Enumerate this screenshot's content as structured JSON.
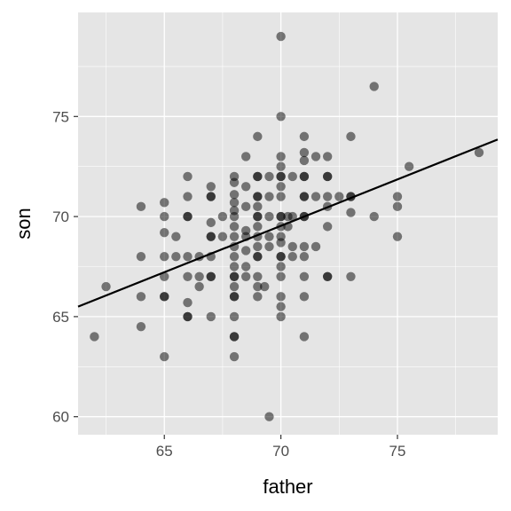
{
  "chart_data": {
    "type": "scatter",
    "title": "",
    "xlabel": "father",
    "ylabel": "son",
    "xlim": [
      61.3,
      79.3
    ],
    "ylim": [
      59.1,
      80.2
    ],
    "x_ticks": [
      65,
      70,
      75
    ],
    "y_ticks": [
      60,
      65,
      70,
      75
    ],
    "x_minor_ticks": [
      62.5,
      67.5,
      72.5,
      77.5
    ],
    "y_minor_ticks": [
      62.5,
      67.5,
      72.5,
      77.5
    ],
    "grid": true,
    "panel_background": "#e5e5e5",
    "grid_color": "#ffffff",
    "point_color": "#000000",
    "point_opacity": 0.5,
    "line_color": "#000000",
    "points": [
      [
        62,
        64
      ],
      [
        62.5,
        66.5
      ],
      [
        64,
        70.5
      ],
      [
        64,
        68
      ],
      [
        64,
        66
      ],
      [
        64,
        64.5
      ],
      [
        65,
        70.7
      ],
      [
        65,
        70
      ],
      [
        65,
        69.2
      ],
      [
        65,
        68
      ],
      [
        65,
        67
      ],
      [
        65,
        66
      ],
      [
        65,
        66
      ],
      [
        65,
        63
      ],
      [
        65.5,
        69
      ],
      [
        65.5,
        68
      ],
      [
        66,
        72
      ],
      [
        66,
        71
      ],
      [
        66,
        70
      ],
      [
        66,
        70
      ],
      [
        66,
        68
      ],
      [
        66,
        67
      ],
      [
        66,
        65.7
      ],
      [
        66,
        65
      ],
      [
        66,
        65
      ],
      [
        66.5,
        68
      ],
      [
        66.5,
        67
      ],
      [
        66.5,
        66.5
      ],
      [
        67,
        71.5
      ],
      [
        67,
        71
      ],
      [
        67,
        71
      ],
      [
        67,
        69.7
      ],
      [
        67,
        69
      ],
      [
        67,
        69
      ],
      [
        67,
        68
      ],
      [
        67,
        67
      ],
      [
        67,
        67
      ],
      [
        67,
        65
      ],
      [
        67.5,
        70
      ],
      [
        67.5,
        69
      ],
      [
        68,
        72
      ],
      [
        68,
        71.7
      ],
      [
        68,
        71.1
      ],
      [
        68,
        70.7
      ],
      [
        68,
        70.3
      ],
      [
        68,
        70
      ],
      [
        68,
        69.5
      ],
      [
        68,
        69
      ],
      [
        68,
        68.5
      ],
      [
        68,
        68
      ],
      [
        68,
        67.5
      ],
      [
        68,
        67
      ],
      [
        68,
        67
      ],
      [
        68,
        66.5
      ],
      [
        68,
        66
      ],
      [
        68,
        66
      ],
      [
        68,
        65
      ],
      [
        68,
        64
      ],
      [
        68,
        64
      ],
      [
        68,
        63
      ],
      [
        68.5,
        73
      ],
      [
        68.5,
        71.5
      ],
      [
        68.5,
        70.5
      ],
      [
        68.5,
        69.3
      ],
      [
        68.5,
        69
      ],
      [
        68.5,
        68.3
      ],
      [
        68.5,
        67.5
      ],
      [
        68.5,
        67
      ],
      [
        69,
        74
      ],
      [
        69,
        72
      ],
      [
        69,
        72
      ],
      [
        69,
        71
      ],
      [
        69,
        71
      ],
      [
        69,
        70.5
      ],
      [
        69,
        70
      ],
      [
        69,
        70
      ],
      [
        69,
        69.5
      ],
      [
        69,
        69
      ],
      [
        69,
        68.5
      ],
      [
        69,
        68
      ],
      [
        69,
        68
      ],
      [
        69,
        67
      ],
      [
        69,
        66.5
      ],
      [
        69,
        66
      ],
      [
        69.3,
        66.5
      ],
      [
        69.5,
        72
      ],
      [
        69.5,
        71
      ],
      [
        69.5,
        70
      ],
      [
        69.5,
        69
      ],
      [
        69.5,
        68.5
      ],
      [
        69.5,
        60
      ],
      [
        70,
        79
      ],
      [
        70,
        75
      ],
      [
        70,
        73
      ],
      [
        70,
        72.5
      ],
      [
        70,
        72
      ],
      [
        70,
        72
      ],
      [
        70,
        71.5
      ],
      [
        70,
        71
      ],
      [
        70,
        70
      ],
      [
        70,
        70
      ],
      [
        70,
        69.5
      ],
      [
        70,
        69
      ],
      [
        70,
        68.7
      ],
      [
        70,
        68
      ],
      [
        70,
        68
      ],
      [
        70,
        67.5
      ],
      [
        70,
        67
      ],
      [
        70,
        66
      ],
      [
        70,
        65.5
      ],
      [
        70,
        65
      ],
      [
        70.3,
        70
      ],
      [
        70.3,
        69.5
      ],
      [
        70.5,
        72
      ],
      [
        70.5,
        70
      ],
      [
        70.5,
        68.5
      ],
      [
        70.5,
        68
      ],
      [
        71,
        74
      ],
      [
        71,
        73.2
      ],
      [
        71,
        72.8
      ],
      [
        71,
        72
      ],
      [
        71,
        72
      ],
      [
        71,
        71
      ],
      [
        71,
        71
      ],
      [
        71,
        70
      ],
      [
        71,
        70
      ],
      [
        71,
        68.5
      ],
      [
        71,
        68
      ],
      [
        71,
        67
      ],
      [
        71,
        66
      ],
      [
        71,
        64
      ],
      [
        71.5,
        73
      ],
      [
        71.5,
        71
      ],
      [
        71.5,
        68.5
      ],
      [
        72,
        73
      ],
      [
        72,
        72
      ],
      [
        72,
        72
      ],
      [
        72,
        71
      ],
      [
        72,
        70.5
      ],
      [
        72,
        69.5
      ],
      [
        72,
        67
      ],
      [
        72,
        67
      ],
      [
        72.5,
        71
      ],
      [
        73,
        74
      ],
      [
        73,
        71
      ],
      [
        73,
        71
      ],
      [
        73,
        70.2
      ],
      [
        73,
        67
      ],
      [
        74,
        76.5
      ],
      [
        74,
        70
      ],
      [
        75,
        71
      ],
      [
        75,
        70.5
      ],
      [
        75,
        69
      ],
      [
        75.5,
        72.5
      ],
      [
        78.5,
        73.2
      ]
    ],
    "regression_line": {
      "x": [
        61.3,
        79.3
      ],
      "y": [
        65.5,
        73.85
      ]
    }
  }
}
